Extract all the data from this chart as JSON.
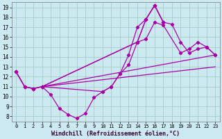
{
  "background_color": "#cce8f0",
  "line_color": "#aa00aa",
  "grid_color": "#99ccbb",
  "xlabel": "Windchill (Refroidissement éolien,°C)",
  "xlabel_fontsize": 6.0,
  "tick_fontsize": 5.5,
  "xmin": -0.5,
  "xmax": 23.5,
  "ymin": 7.5,
  "ymax": 19.5,
  "yticks": [
    8,
    9,
    10,
    11,
    12,
    13,
    14,
    15,
    16,
    17,
    18,
    19
  ],
  "xticks": [
    0,
    1,
    2,
    3,
    4,
    5,
    6,
    7,
    8,
    9,
    10,
    11,
    12,
    13,
    14,
    15,
    16,
    17,
    18,
    19,
    20,
    21,
    22,
    23
  ],
  "line1_x": [
    0,
    1,
    2,
    3,
    4,
    5,
    6,
    7,
    8,
    9,
    10,
    11,
    12,
    13,
    14,
    15,
    16,
    17,
    18,
    19,
    20,
    21,
    22,
    23
  ],
  "line1_y": [
    12.5,
    11.0,
    10.8,
    11.0,
    10.2,
    8.8,
    8.2,
    7.8,
    8.3,
    9.9,
    10.5,
    11.0,
    12.3,
    14.2,
    17.0,
    17.8,
    19.2,
    17.5,
    17.3,
    15.5,
    14.4,
    14.8,
    15.0,
    14.2
  ],
  "line2_x": [
    0,
    1,
    2,
    3,
    14,
    15,
    16,
    17
  ],
  "line2_y": [
    12.5,
    11.0,
    10.8,
    11.0,
    15.5,
    17.8,
    19.2,
    17.5
  ],
  "line3_x": [
    3,
    10,
    11,
    12,
    13,
    14,
    15,
    16,
    17,
    19,
    20,
    21,
    22,
    23
  ],
  "line3_y": [
    11.0,
    10.5,
    11.0,
    12.3,
    13.2,
    15.5,
    15.8,
    17.5,
    17.2,
    14.4,
    14.8,
    15.5,
    15.0,
    14.2
  ],
  "line4_x": [
    3,
    23
  ],
  "line4_y": [
    11.0,
    14.2
  ],
  "line5_x": [
    3,
    23
  ],
  "line5_y": [
    11.0,
    13.0
  ]
}
